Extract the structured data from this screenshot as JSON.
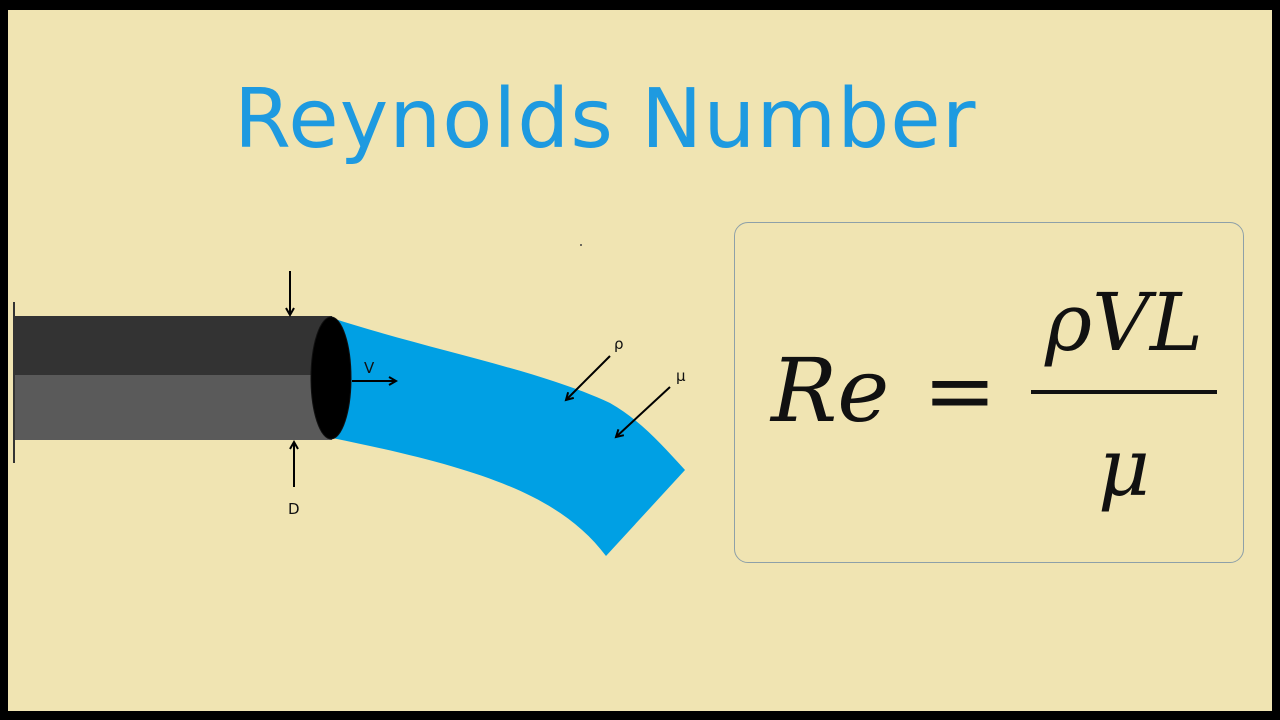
{
  "title": "Reynolds Number",
  "diagram": {
    "labels": {
      "velocity": "V",
      "diameter": "D",
      "density": "ρ",
      "viscosity": "μ"
    },
    "colors": {
      "background": "#f0e4b2",
      "title": "#1e9ae0",
      "fluid": "#00a0e4",
      "pipe_top": "#333333",
      "pipe_bottom": "#5a5a5a"
    }
  },
  "formula": {
    "lhs": "Re",
    "equals": "=",
    "numerator": "ρVL",
    "denominator": "μ"
  }
}
